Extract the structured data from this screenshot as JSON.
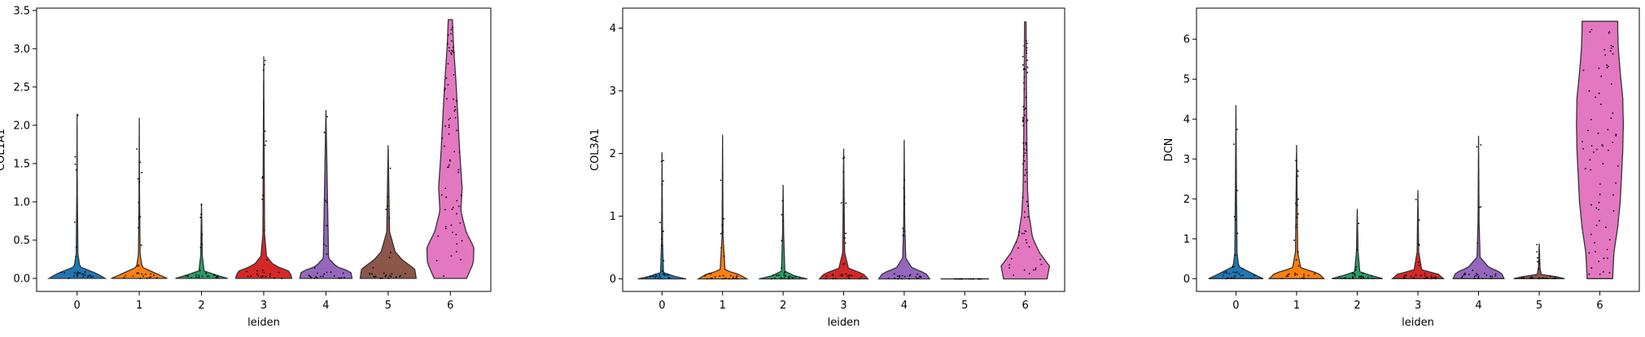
{
  "chart_data": [
    {
      "type": "violin",
      "ylabel": "COL1A1",
      "xlabel": "leiden",
      "categories": [
        "0",
        "1",
        "2",
        "3",
        "4",
        "5",
        "6"
      ],
      "colors": [
        "#1f77b4",
        "#ff7f0e",
        "#279e68",
        "#d62728",
        "#9467bd",
        "#8c564b",
        "#e377c2"
      ],
      "ylim": [
        -0.17,
        3.53
      ],
      "yticks": [
        "0.0",
        "0.5",
        "1.0",
        "1.5",
        "2.0",
        "2.5",
        "3.0",
        "3.5"
      ],
      "ytick_values": [
        0,
        0.5,
        1.0,
        1.5,
        2.0,
        2.5,
        3.0,
        3.5
      ],
      "max": [
        2.15,
        2.1,
        0.98,
        2.9,
        2.2,
        1.74,
        3.38
      ],
      "halfwidth": [
        0.45,
        0.45,
        0.42,
        0.45,
        0.42,
        0.45,
        0.42
      ],
      "shape": [
        [
          [
            0,
            1.0
          ],
          [
            0.03,
            0.7
          ],
          [
            0.07,
            0.1
          ],
          [
            0.15,
            0.03
          ],
          [
            0.5,
            0.01
          ],
          [
            1,
            0.0
          ]
        ],
        [
          [
            0,
            1.0
          ],
          [
            0.03,
            0.6
          ],
          [
            0.07,
            0.1
          ],
          [
            0.15,
            0.03
          ],
          [
            0.5,
            0.01
          ],
          [
            1,
            0.0
          ]
        ],
        [
          [
            0,
            1.0
          ],
          [
            0.04,
            0.6
          ],
          [
            0.1,
            0.1
          ],
          [
            0.3,
            0.03
          ],
          [
            1,
            0.0
          ]
        ],
        [
          [
            0,
            1.0
          ],
          [
            0.03,
            0.95
          ],
          [
            0.06,
            0.35
          ],
          [
            0.1,
            0.1
          ],
          [
            0.2,
            0.03
          ],
          [
            1,
            0.0
          ]
        ],
        [
          [
            0,
            1.0
          ],
          [
            0.04,
            0.95
          ],
          [
            0.07,
            0.4
          ],
          [
            0.12,
            0.1
          ],
          [
            1,
            0.0
          ]
        ],
        [
          [
            0,
            1.0
          ],
          [
            0.07,
            0.95
          ],
          [
            0.14,
            0.5
          ],
          [
            0.2,
            0.25
          ],
          [
            0.35,
            0.05
          ],
          [
            1,
            0.0
          ]
        ],
        [
          [
            0,
            0.62
          ],
          [
            0.06,
            0.88
          ],
          [
            0.12,
            0.9
          ],
          [
            0.18,
            0.6
          ],
          [
            0.26,
            0.4
          ],
          [
            0.35,
            0.45
          ],
          [
            0.5,
            0.35
          ],
          [
            0.6,
            0.3
          ],
          [
            0.75,
            0.22
          ],
          [
            0.9,
            0.12
          ],
          [
            1,
            0.08
          ]
        ]
      ]
    },
    {
      "type": "violin",
      "ylabel": "COL3A1",
      "xlabel": "leiden",
      "categories": [
        "0",
        "1",
        "2",
        "3",
        "4",
        "5",
        "6"
      ],
      "colors": [
        "#1f77b4",
        "#ff7f0e",
        "#279e68",
        "#d62728",
        "#9467bd",
        "#8c564b",
        "#e377c2"
      ],
      "ylim": [
        -0.2,
        4.32
      ],
      "yticks": [
        "0",
        "1",
        "2",
        "3",
        "4"
      ],
      "ytick_values": [
        0,
        1,
        2,
        3,
        4
      ],
      "max": [
        2.02,
        2.3,
        1.5,
        2.08,
        2.22,
        0.0,
        4.1
      ],
      "halfwidth": [
        0.4,
        0.4,
        0.4,
        0.4,
        0.42,
        0.4,
        0.4
      ],
      "shape": [
        [
          [
            0,
            1.0
          ],
          [
            0.02,
            0.5
          ],
          [
            0.05,
            0.06
          ],
          [
            0.3,
            0.02
          ],
          [
            1,
            0.0
          ]
        ],
        [
          [
            0,
            1.0
          ],
          [
            0.03,
            0.7
          ],
          [
            0.06,
            0.1
          ],
          [
            0.3,
            0.02
          ],
          [
            1,
            0.0
          ]
        ],
        [
          [
            0,
            1.0
          ],
          [
            0.03,
            0.5
          ],
          [
            0.08,
            0.07
          ],
          [
            0.5,
            0.02
          ],
          [
            1,
            0.0
          ]
        ],
        [
          [
            0,
            1.0
          ],
          [
            0.04,
            0.8
          ],
          [
            0.08,
            0.2
          ],
          [
            0.2,
            0.04
          ],
          [
            1,
            0.0
          ]
        ],
        [
          [
            0,
            1.0
          ],
          [
            0.04,
            0.85
          ],
          [
            0.08,
            0.3
          ],
          [
            0.15,
            0.06
          ],
          [
            0.4,
            0.02
          ],
          [
            1,
            0.0
          ]
        ],
        [
          [
            0,
            1.0
          ],
          [
            1,
            1.0
          ]
        ],
        [
          [
            0,
            0.9
          ],
          [
            0.05,
            1.0
          ],
          [
            0.1,
            0.6
          ],
          [
            0.16,
            0.3
          ],
          [
            0.25,
            0.15
          ],
          [
            0.35,
            0.09
          ],
          [
            0.5,
            0.07
          ],
          [
            0.7,
            0.05
          ],
          [
            0.85,
            0.04
          ],
          [
            1,
            0.03
          ]
        ]
      ]
    },
    {
      "type": "violin",
      "ylabel": "DCN",
      "xlabel": "leiden",
      "categories": [
        "0",
        "1",
        "2",
        "3",
        "4",
        "5",
        "6"
      ],
      "colors": [
        "#1f77b4",
        "#ff7f0e",
        "#279e68",
        "#d62728",
        "#9467bd",
        "#8c564b",
        "#e377c2"
      ],
      "ylim": [
        -0.32,
        6.78
      ],
      "yticks": [
        "0",
        "1",
        "2",
        "3",
        "4",
        "5",
        "6"
      ],
      "ytick_values": [
        0,
        1,
        2,
        3,
        4,
        5,
        6
      ],
      "max": [
        4.35,
        3.35,
        1.75,
        2.22,
        3.58,
        0.88,
        6.45
      ],
      "halfwidth": [
        0.45,
        0.45,
        0.42,
        0.42,
        0.42,
        0.42,
        0.42
      ],
      "shape": [
        [
          [
            0,
            1.0
          ],
          [
            0.03,
            0.6
          ],
          [
            0.07,
            0.1
          ],
          [
            0.15,
            0.04
          ],
          [
            0.5,
            0.02
          ],
          [
            1,
            0.0
          ]
        ],
        [
          [
            0,
            1.0
          ],
          [
            0.04,
            0.8
          ],
          [
            0.08,
            0.15
          ],
          [
            0.2,
            0.04
          ],
          [
            1,
            0.0
          ]
        ],
        [
          [
            0,
            1.0
          ],
          [
            0.05,
            0.5
          ],
          [
            0.1,
            0.1
          ],
          [
            0.4,
            0.03
          ],
          [
            1,
            0.0
          ]
        ],
        [
          [
            0,
            1.0
          ],
          [
            0.05,
            0.8
          ],
          [
            0.1,
            0.15
          ],
          [
            0.3,
            0.03
          ],
          [
            1,
            0.0
          ]
        ],
        [
          [
            0,
            1.0
          ],
          [
            0.04,
            0.9
          ],
          [
            0.08,
            0.4
          ],
          [
            0.15,
            0.06
          ],
          [
            0.4,
            0.02
          ],
          [
            1,
            0.0
          ]
        ],
        [
          [
            0,
            1.0
          ],
          [
            0.05,
            0.7
          ],
          [
            0.12,
            0.08
          ],
          [
            0.3,
            0.03
          ],
          [
            1,
            0.0
          ]
        ],
        [
          [
            0,
            0.5
          ],
          [
            0.1,
            0.55
          ],
          [
            0.2,
            0.7
          ],
          [
            0.3,
            0.8
          ],
          [
            0.4,
            0.85
          ],
          [
            0.5,
            0.9
          ],
          [
            0.6,
            0.92
          ],
          [
            0.7,
            0.9
          ],
          [
            0.8,
            0.8
          ],
          [
            0.9,
            0.72
          ],
          [
            0.97,
            0.7
          ],
          [
            1,
            0.7
          ]
        ]
      ]
    }
  ]
}
